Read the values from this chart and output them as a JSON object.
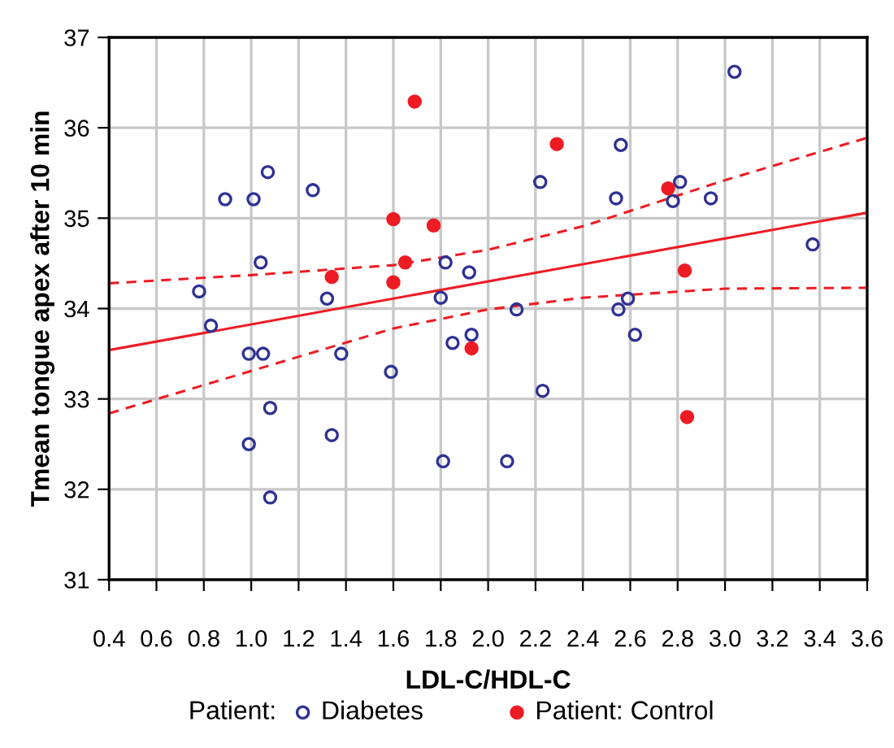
{
  "chart_data": {
    "type": "scatter",
    "xlabel": "LDL-C/HDL-C",
    "ylabel": "Tmean tongue apex after 10 min",
    "legend_title": "Patient:",
    "xlim": [
      0.4,
      3.6
    ],
    "ylim": [
      31,
      37
    ],
    "xticks": [
      0.4,
      0.6,
      0.8,
      {
        "value": 1,
        "label": "1.0"
      },
      1.2,
      1.4,
      1.6,
      1.8,
      {
        "value": 2,
        "label": "2.0"
      },
      2.2,
      2.4,
      2.6,
      2.8,
      {
        "value": 3,
        "label": "3.0"
      },
      3.2,
      3.4,
      3.6
    ],
    "yticks": [
      31,
      32,
      33,
      34,
      35,
      36,
      37
    ],
    "grid": true,
    "legend": "bottom",
    "series": [
      {
        "name": "Diabetes",
        "color": "#2e3192",
        "marker": "circle",
        "x": [
          0.89,
          1.01,
          1.07,
          1.26,
          1.04,
          0.78,
          1.32,
          1.82,
          1.92,
          1.8,
          0.83,
          0.99,
          1.05,
          1.38,
          1.59,
          1.85,
          1.93,
          1.08,
          0.99,
          1.34,
          1.81,
          1.08,
          3.04,
          2.56,
          2.22,
          2.54,
          2.81,
          2.78,
          2.94,
          3.37,
          2.12,
          2.55,
          2.59,
          2.62,
          2.23,
          2.08
        ],
        "values": [
          35.21,
          35.21,
          35.51,
          35.31,
          34.51,
          34.19,
          34.11,
          34.51,
          34.4,
          34.12,
          33.81,
          33.5,
          33.5,
          33.5,
          33.3,
          33.62,
          33.71,
          32.9,
          32.5,
          32.6,
          32.31,
          31.91,
          36.62,
          35.81,
          35.4,
          35.22,
          35.4,
          35.19,
          35.22,
          34.71,
          33.99,
          33.99,
          34.11,
          33.71,
          33.09,
          32.31
        ]
      },
      {
        "name": "Patient: Control",
        "color": "#ed1c24",
        "marker": "circle",
        "x": [
          1.69,
          1.6,
          1.77,
          1.65,
          1.34,
          1.6,
          1.93,
          2.29,
          2.76,
          2.83,
          2.84
        ],
        "values": [
          36.29,
          34.99,
          34.92,
          34.51,
          34.35,
          34.29,
          33.56,
          35.82,
          35.33,
          34.42,
          32.8
        ]
      },
      {
        "type": "line",
        "color": "#ed1c24",
        "line_style": "solid",
        "x": [
          0.4,
          3.6
        ],
        "values": [
          33.54,
          35.06
        ]
      },
      {
        "type": "line",
        "color": "#ed1c24",
        "line_style": "dashed",
        "x": [
          0.4,
          1.0,
          1.6,
          2.0,
          2.4,
          3.0,
          3.6
        ],
        "values": [
          34.28,
          34.37,
          34.48,
          34.65,
          34.91,
          35.42,
          35.89
        ]
      },
      {
        "type": "line",
        "color": "#ed1c24",
        "line_style": "dashed",
        "x": [
          0.4,
          1.0,
          1.6,
          2.0,
          2.4,
          3.0,
          3.6
        ],
        "values": [
          32.84,
          33.31,
          33.78,
          33.99,
          34.12,
          34.22,
          34.23
        ]
      }
    ]
  }
}
